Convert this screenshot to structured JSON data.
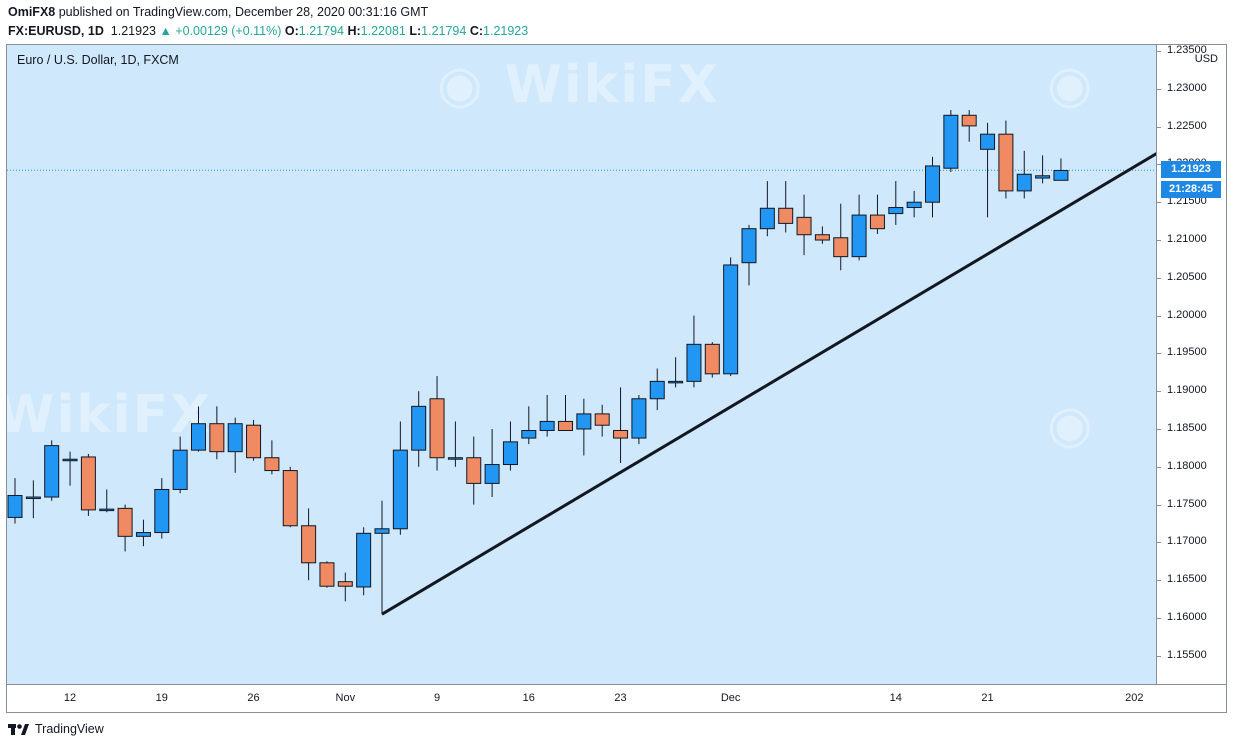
{
  "header": {
    "author": "OmiFX8",
    "published_text": "published on TradingView.com, December 28, 2020 00:31:16 GMT",
    "symbol": "FX:EURUSD, 1D",
    "last": "1.21923",
    "change": "▲ +0.00129 (+0.11%)",
    "o_label": "O:",
    "o_val": "1.21794",
    "h_label": "H:",
    "h_val": "1.22081",
    "l_label": "L:",
    "l_val": "1.21794",
    "c_label": "C:",
    "c_val": "1.21923"
  },
  "legend_title": "Euro / U.S. Dollar, 1D, FXCM",
  "price_unit": "USD",
  "price_label": "1.21923",
  "countdown_label": "21:28:45",
  "footer": {
    "brand": "TradingView"
  },
  "watermark": "WikiFX",
  "colors": {
    "up": "#2196f3",
    "down": "#ef8a62",
    "background": "#cfe8fc",
    "trendline": "#131722"
  },
  "chart_data": {
    "type": "candlestick",
    "title": "Euro / U.S. Dollar, 1D, FXCM",
    "ylabel": "USD",
    "ylim": [
      1.151,
      1.2358
    ],
    "y_ticks": [
      "1.23500",
      "1.23000",
      "1.22500",
      "1.22000",
      "1.21500",
      "1.21000",
      "1.20500",
      "1.20000",
      "1.19500",
      "1.19000",
      "1.18500",
      "1.18000",
      "1.17500",
      "1.17000",
      "1.16500",
      "1.16000",
      "1.15500"
    ],
    "x_ticks": [
      {
        "label": "12",
        "index": 3
      },
      {
        "label": "19",
        "index": 8
      },
      {
        "label": "26",
        "index": 13
      },
      {
        "label": "Nov",
        "index": 18
      },
      {
        "label": "9",
        "index": 23
      },
      {
        "label": "16",
        "index": 28
      },
      {
        "label": "23",
        "index": 33
      },
      {
        "label": "Dec",
        "index": 39
      },
      {
        "label": "14",
        "index": 48
      },
      {
        "label": "21",
        "index": 53
      },
      {
        "label": "202",
        "index": 61
      }
    ],
    "candles": [
      {
        "o": 1.1733,
        "h": 1.1785,
        "l": 1.1725,
        "c": 1.1762
      },
      {
        "o": 1.176,
        "h": 1.1782,
        "l": 1.1732,
        "c": 1.176
      },
      {
        "o": 1.176,
        "h": 1.1835,
        "l": 1.1755,
        "c": 1.1828
      },
      {
        "o": 1.181,
        "h": 1.182,
        "l": 1.1775,
        "c": 1.181
      },
      {
        "o": 1.1813,
        "h": 1.1817,
        "l": 1.1735,
        "c": 1.1743
      },
      {
        "o": 1.1744,
        "h": 1.177,
        "l": 1.174,
        "c": 1.1744
      },
      {
        "o": 1.1745,
        "h": 1.175,
        "l": 1.1688,
        "c": 1.1708
      },
      {
        "o": 1.1708,
        "h": 1.173,
        "l": 1.1695,
        "c": 1.1713
      },
      {
        "o": 1.1713,
        "h": 1.1785,
        "l": 1.1705,
        "c": 1.177
      },
      {
        "o": 1.177,
        "h": 1.184,
        "l": 1.1765,
        "c": 1.1822
      },
      {
        "o": 1.1822,
        "h": 1.188,
        "l": 1.182,
        "c": 1.1857
      },
      {
        "o": 1.1857,
        "h": 1.188,
        "l": 1.181,
        "c": 1.182
      },
      {
        "o": 1.182,
        "h": 1.1865,
        "l": 1.1792,
        "c": 1.1857
      },
      {
        "o": 1.1855,
        "h": 1.1862,
        "l": 1.1808,
        "c": 1.1812
      },
      {
        "o": 1.1812,
        "h": 1.1835,
        "l": 1.179,
        "c": 1.1795
      },
      {
        "o": 1.1795,
        "h": 1.18,
        "l": 1.172,
        "c": 1.1722
      },
      {
        "o": 1.1722,
        "h": 1.1745,
        "l": 1.165,
        "c": 1.1673
      },
      {
        "o": 1.1673,
        "h": 1.1675,
        "l": 1.164,
        "c": 1.1642
      },
      {
        "o": 1.1648,
        "h": 1.166,
        "l": 1.1622,
        "c": 1.1642
      },
      {
        "o": 1.1641,
        "h": 1.172,
        "l": 1.163,
        "c": 1.1712
      },
      {
        "o": 1.1712,
        "h": 1.1755,
        "l": 1.1605,
        "c": 1.1718
      },
      {
        "o": 1.1718,
        "h": 1.186,
        "l": 1.171,
        "c": 1.1822
      },
      {
        "o": 1.1822,
        "h": 1.19,
        "l": 1.18,
        "c": 1.188
      },
      {
        "o": 1.189,
        "h": 1.192,
        "l": 1.1795,
        "c": 1.1812
      },
      {
        "o": 1.1812,
        "h": 1.186,
        "l": 1.18,
        "c": 1.1812
      },
      {
        "o": 1.1812,
        "h": 1.184,
        "l": 1.175,
        "c": 1.1778
      },
      {
        "o": 1.1778,
        "h": 1.185,
        "l": 1.176,
        "c": 1.1803
      },
      {
        "o": 1.1803,
        "h": 1.186,
        "l": 1.1795,
        "c": 1.1833
      },
      {
        "o": 1.1838,
        "h": 1.188,
        "l": 1.183,
        "c": 1.1848
      },
      {
        "o": 1.1848,
        "h": 1.1895,
        "l": 1.184,
        "c": 1.186
      },
      {
        "o": 1.186,
        "h": 1.1895,
        "l": 1.185,
        "c": 1.1848
      },
      {
        "o": 1.185,
        "h": 1.189,
        "l": 1.1815,
        "c": 1.187
      },
      {
        "o": 1.187,
        "h": 1.1882,
        "l": 1.184,
        "c": 1.1855
      },
      {
        "o": 1.1848,
        "h": 1.1905,
        "l": 1.1805,
        "c": 1.1838
      },
      {
        "o": 1.1838,
        "h": 1.1895,
        "l": 1.183,
        "c": 1.189
      },
      {
        "o": 1.189,
        "h": 1.193,
        "l": 1.1875,
        "c": 1.1913
      },
      {
        "o": 1.1913,
        "h": 1.1945,
        "l": 1.1905,
        "c": 1.1913
      },
      {
        "o": 1.1913,
        "h": 1.2,
        "l": 1.1905,
        "c": 1.1962
      },
      {
        "o": 1.1962,
        "h": 1.1965,
        "l": 1.1918,
        "c": 1.1923
      },
      {
        "o": 1.1923,
        "h": 1.2077,
        "l": 1.192,
        "c": 1.2067
      },
      {
        "o": 1.207,
        "h": 1.212,
        "l": 1.204,
        "c": 1.2115
      },
      {
        "o": 1.2115,
        "h": 1.2178,
        "l": 1.2105,
        "c": 1.2142
      },
      {
        "o": 1.2142,
        "h": 1.2178,
        "l": 1.211,
        "c": 1.2122
      },
      {
        "o": 1.213,
        "h": 1.216,
        "l": 1.208,
        "c": 1.2107
      },
      {
        "o": 1.2107,
        "h": 1.2118,
        "l": 1.2095,
        "c": 1.21
      },
      {
        "o": 1.2103,
        "h": 1.2148,
        "l": 1.206,
        "c": 1.2078
      },
      {
        "o": 1.2078,
        "h": 1.216,
        "l": 1.2073,
        "c": 1.2133
      },
      {
        "o": 1.2133,
        "h": 1.216,
        "l": 1.2108,
        "c": 1.2115
      },
      {
        "o": 1.2135,
        "h": 1.2178,
        "l": 1.212,
        "c": 1.2143
      },
      {
        "o": 1.2143,
        "h": 1.2165,
        "l": 1.213,
        "c": 1.215
      },
      {
        "o": 1.215,
        "h": 1.221,
        "l": 1.213,
        "c": 1.2198
      },
      {
        "o": 1.2195,
        "h": 1.2272,
        "l": 1.219,
        "c": 1.2265
      },
      {
        "o": 1.2265,
        "h": 1.2272,
        "l": 1.223,
        "c": 1.2251
      },
      {
        "o": 1.222,
        "h": 1.2255,
        "l": 1.213,
        "c": 1.224
      },
      {
        "o": 1.224,
        "h": 1.2258,
        "l": 1.2155,
        "c": 1.2165
      },
      {
        "o": 1.2165,
        "h": 1.2218,
        "l": 1.2155,
        "c": 1.2187
      },
      {
        "o": 1.2182,
        "h": 1.2212,
        "l": 1.2175,
        "c": 1.2185
      },
      {
        "o": 1.2179,
        "h": 1.2208,
        "l": 1.2179,
        "c": 1.2192
      }
    ],
    "trendline": {
      "start": {
        "index": 20,
        "price": 1.1605
      },
      "end": {
        "index": 63.5,
        "price": 1.2233
      }
    },
    "last_price": 1.21923,
    "grid": false
  }
}
